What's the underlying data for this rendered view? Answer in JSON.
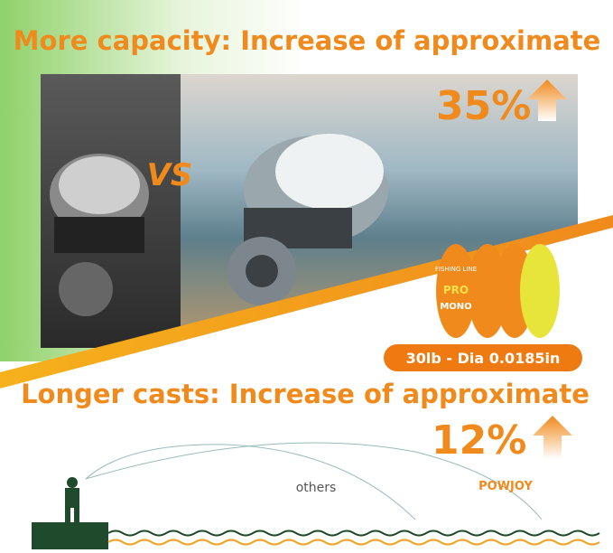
{
  "headline_top": "More capacity: Increase of approximate",
  "capacity_percent": "35%",
  "versus": "VS",
  "spool": {
    "brand_line": "FISHING LINE",
    "pro": "PRO",
    "mono": "MONO"
  },
  "badge": "30lb - Dia 0.0185in",
  "headline_bottom": "Longer casts: Increase of approximate",
  "cast_percent": "12%",
  "cast_labels": {
    "others": "others",
    "brand": "POWJOY"
  }
}
